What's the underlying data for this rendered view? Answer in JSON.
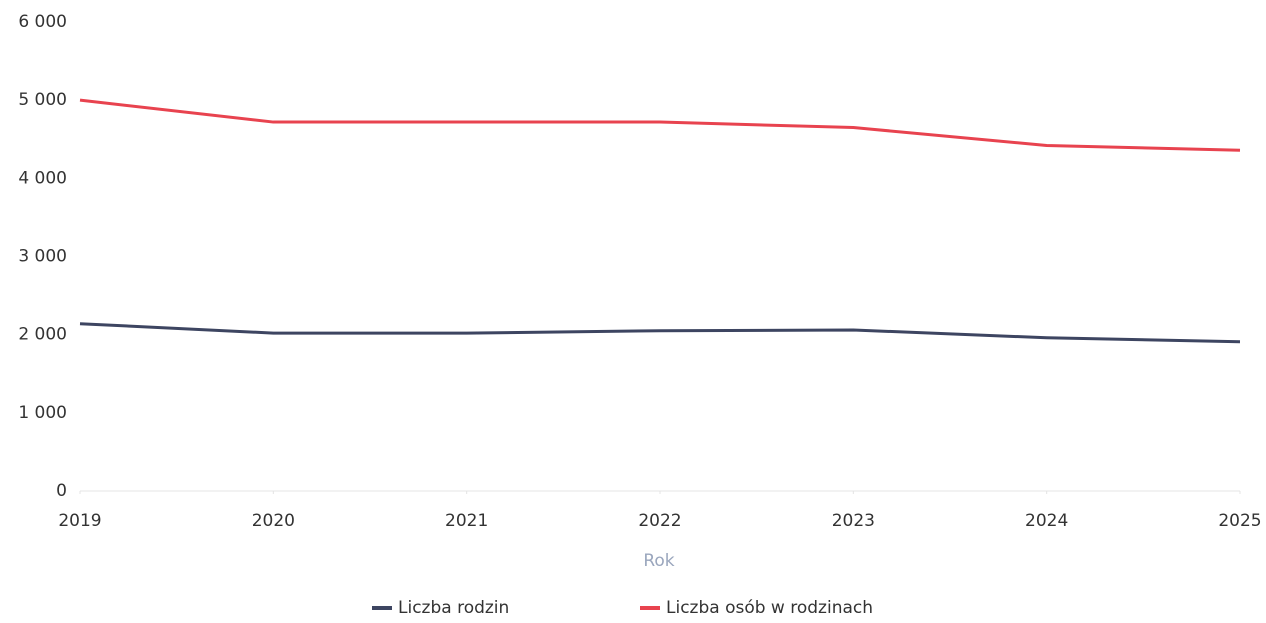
{
  "chart_data": {
    "type": "line",
    "x": [
      2019,
      2020,
      2021,
      2022,
      2023,
      2024,
      2025
    ],
    "xlim": [
      2019,
      2025
    ],
    "xticks": [
      2019,
      2020,
      2021,
      2022,
      2023,
      2024,
      2025
    ],
    "xlabel": "Rok",
    "ylim": [
      0,
      6000
    ],
    "yticks": [
      0,
      {
        "value": 1000,
        "label": "1 000"
      },
      {
        "value": 2000,
        "label": "2 000"
      },
      {
        "value": 3000,
        "label": "3 000"
      },
      {
        "value": 4000,
        "label": "4 000"
      },
      {
        "value": 5000,
        "label": "5 000"
      },
      {
        "value": 6000,
        "label": "6 000"
      }
    ],
    "grid": false,
    "legend": "bottom",
    "series": [
      {
        "name": "Liczba rodzin",
        "color": "#3d4561",
        "values": [
          2140,
          2020,
          2020,
          2050,
          2060,
          1960,
          1910
        ]
      },
      {
        "name": "Liczba osób w rodzinach",
        "color": "#e8434f",
        "values": [
          5000,
          4720,
          4720,
          4720,
          4650,
          4420,
          4360
        ]
      }
    ]
  }
}
